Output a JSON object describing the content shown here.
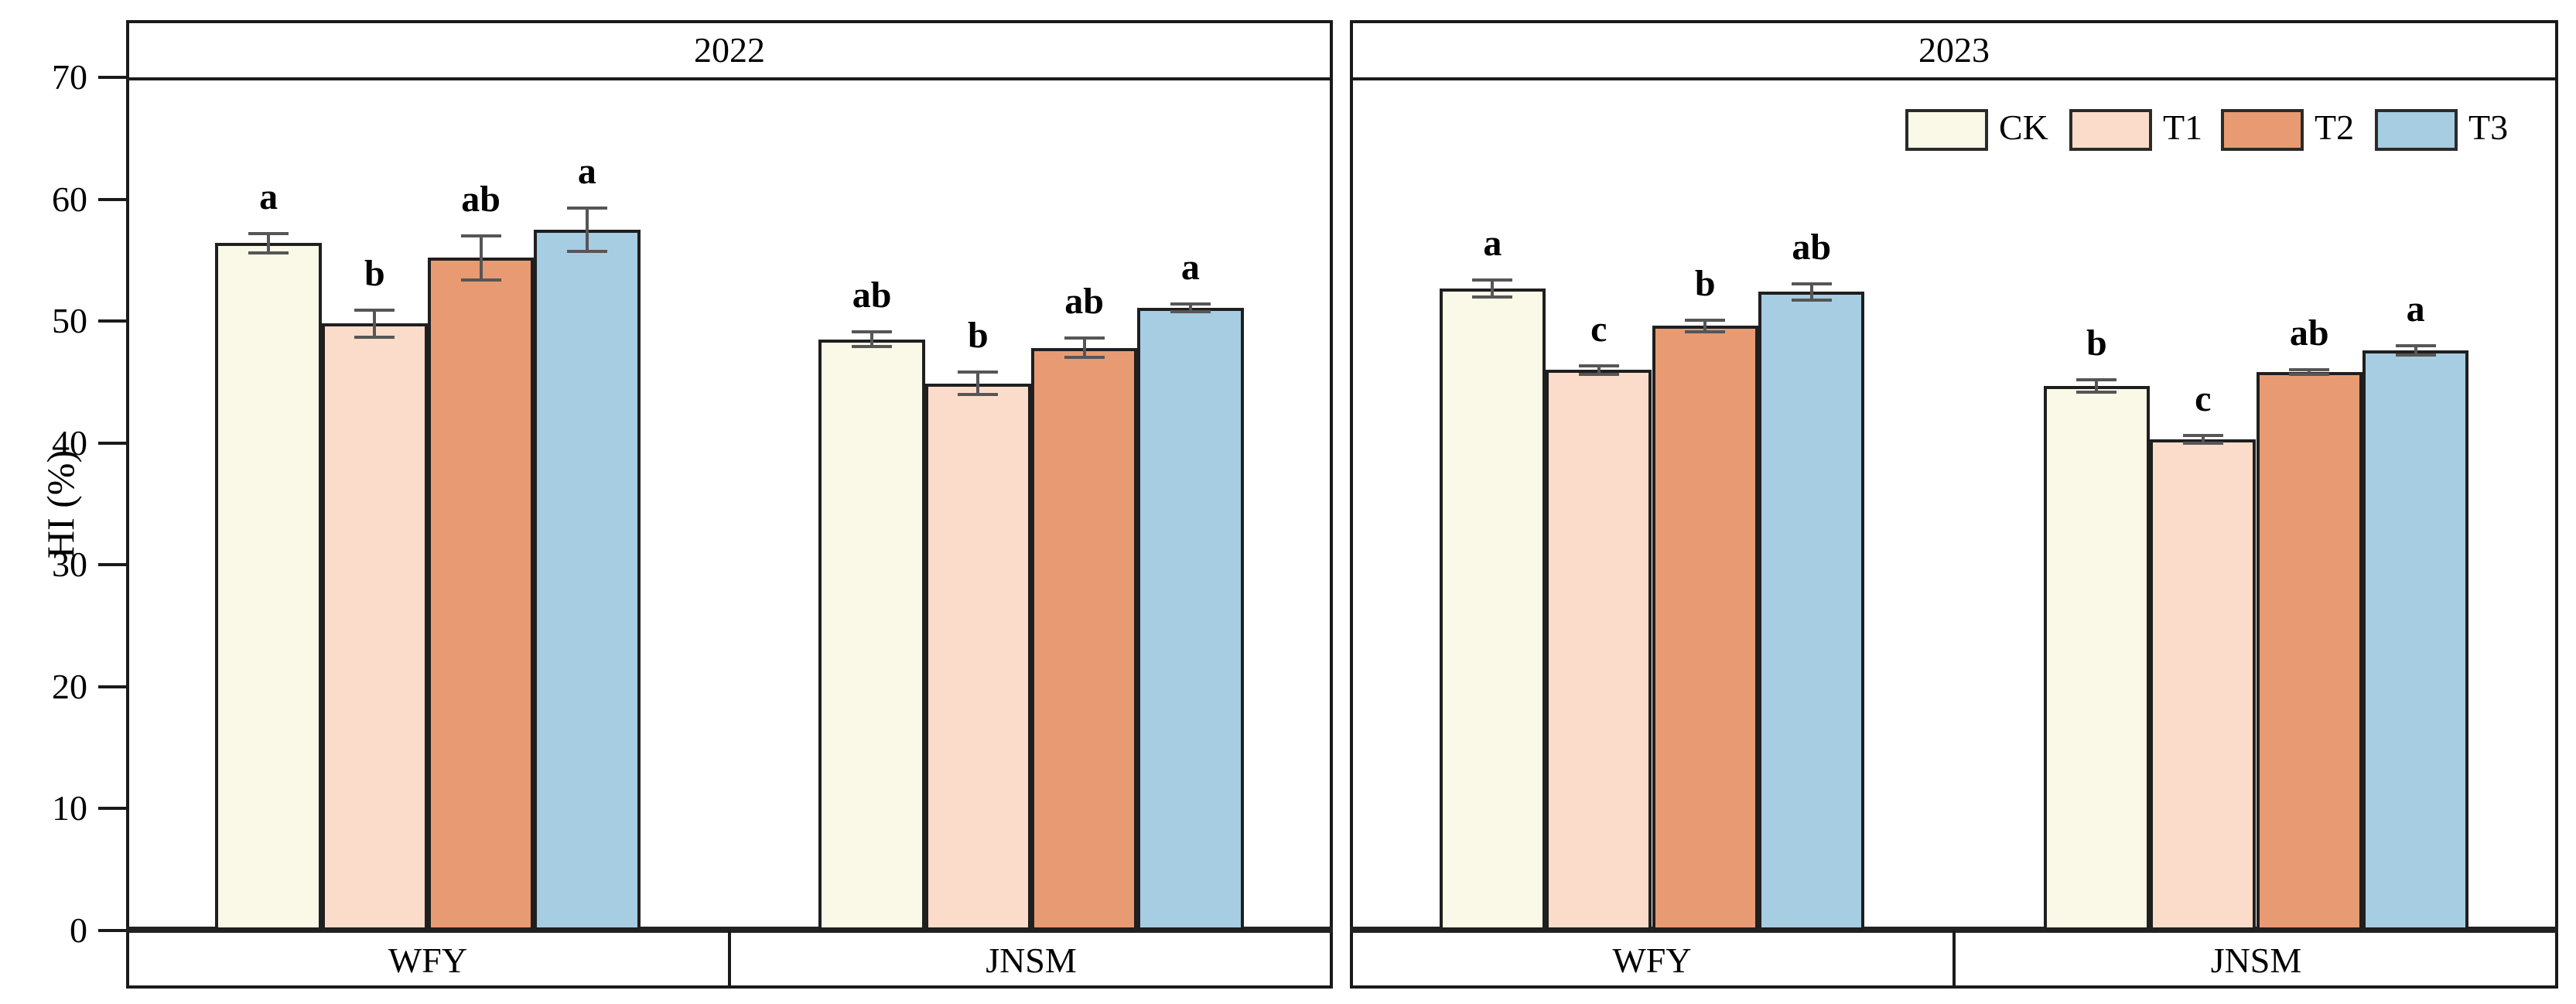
{
  "chart_data": {
    "type": "bar",
    "title": "",
    "ylabel": "HI (%)",
    "ylim": [
      0,
      70
    ],
    "yticks": [
      0,
      10,
      20,
      30,
      40,
      50,
      60,
      70
    ],
    "grid": false,
    "legend": {
      "position": "top-right-of-2023-panel",
      "entries": [
        "CK",
        "T1",
        "T2",
        "T3"
      ]
    },
    "colors": {
      "CK": "#FAF9E8",
      "T1": "#FBDCCB",
      "T2": "#E89B72",
      "T3": "#A6CDE1",
      "bar_border": "#1f1f1f",
      "error_bar": "#565656",
      "frame": "#1a1a1a"
    },
    "panels": [
      {
        "title": "2022",
        "categories": [
          "WFY",
          "JNSM"
        ],
        "series": [
          {
            "name": "CK",
            "values": [
              56.4,
              48.5
            ],
            "errors": [
              0.8,
              0.6
            ],
            "letters": [
              "a",
              "ab"
            ]
          },
          {
            "name": "T1",
            "values": [
              49.8,
              44.9
            ],
            "errors": [
              1.1,
              0.9
            ],
            "letters": [
              "b",
              "b"
            ]
          },
          {
            "name": "T2",
            "values": [
              55.2,
              47.8
            ],
            "errors": [
              1.8,
              0.8
            ],
            "letters": [
              "ab",
              "ab"
            ]
          },
          {
            "name": "T3",
            "values": [
              57.5,
              51.1
            ],
            "errors": [
              1.75,
              0.3
            ],
            "letters": [
              "a",
              "a"
            ]
          }
        ]
      },
      {
        "title": "2023",
        "categories": [
          "WFY",
          "JNSM"
        ],
        "series": [
          {
            "name": "CK",
            "values": [
              52.7,
              44.7
            ],
            "errors": [
              0.7,
              0.5
            ],
            "letters": [
              "a",
              "b"
            ]
          },
          {
            "name": "T1",
            "values": [
              46.0,
              40.3
            ],
            "errors": [
              0.35,
              0.3
            ],
            "letters": [
              "c",
              "c"
            ]
          },
          {
            "name": "T2",
            "values": [
              49.6,
              45.8
            ],
            "errors": [
              0.5,
              0.2
            ],
            "letters": [
              "b",
              "ab"
            ]
          },
          {
            "name": "T3",
            "values": [
              52.4,
              47.6
            ],
            "errors": [
              0.65,
              0.4
            ],
            "letters": [
              "ab",
              "a"
            ]
          }
        ]
      }
    ]
  }
}
